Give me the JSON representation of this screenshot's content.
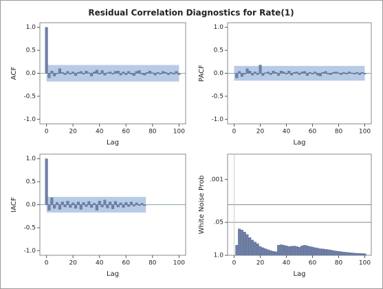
{
  "title": "Residual Correlation Diagnostics for Rate(1)",
  "chart_data": [
    {
      "type": "bar",
      "xlabel": "Lag",
      "ylabel": "ACF",
      "color": "#6f80a6",
      "band_color": "#b7cbe6",
      "xlim": [
        -5,
        105
      ],
      "xticks": [
        0,
        20,
        40,
        60,
        80,
        100
      ],
      "ylim": [
        -1.1,
        1.1
      ],
      "yticks": [
        {
          "value": -1,
          "label": "-1.0"
        },
        -0.5,
        {
          "value": 0,
          "label": "0.0"
        },
        0.5,
        {
          "value": 1,
          "label": "1.0"
        }
      ],
      "band": [
        -0.18,
        0.18
      ],
      "band_x": [
        0,
        100
      ],
      "x": [
        0,
        2,
        4,
        6,
        8,
        10,
        12,
        14,
        16,
        18,
        20,
        22,
        24,
        26,
        28,
        30,
        32,
        34,
        36,
        38,
        40,
        42,
        44,
        46,
        48,
        50,
        52,
        54,
        56,
        58,
        60,
        62,
        64,
        66,
        68,
        70,
        72,
        74,
        76,
        78,
        80,
        82,
        84,
        86,
        88,
        90,
        92,
        94,
        96,
        98,
        100
      ],
      "values": [
        1.0,
        -0.1,
        0.05,
        -0.06,
        0.0,
        0.1,
        0.02,
        -0.03,
        0.04,
        -0.02,
        0.03,
        -0.05,
        0.02,
        0.04,
        -0.02,
        0.05,
        0.01,
        -0.06,
        0.03,
        0.07,
        -0.02,
        0.06,
        -0.04,
        0.01,
        0.03,
        -0.02,
        0.04,
        0.05,
        -0.04,
        0.03,
        -0.03,
        0.04,
        -0.02,
        -0.05,
        0.04,
        0.06,
        -0.02,
        -0.04,
        0.02,
        0.05,
        0.01,
        -0.04,
        0.02,
        -0.02,
        0.04,
        0.02,
        -0.03,
        0.02,
        -0.02,
        0.04,
        -0.03
      ]
    },
    {
      "type": "bar",
      "xlabel": "Lag",
      "ylabel": "PACF",
      "color": "#6f80a6",
      "band_color": "#b7cbe6",
      "xlim": [
        -5,
        105
      ],
      "xticks": [
        0,
        20,
        40,
        60,
        80,
        100
      ],
      "ylim": [
        -1.1,
        1.1
      ],
      "yticks": [
        {
          "value": -1,
          "label": "-1.0"
        },
        -0.5,
        {
          "value": 0,
          "label": "0.0"
        },
        0.5,
        {
          "value": 1,
          "label": "1.0"
        }
      ],
      "band": [
        -0.16,
        0.16
      ],
      "band_x": [
        0,
        100
      ],
      "x": [
        2,
        4,
        6,
        8,
        10,
        12,
        14,
        16,
        18,
        20,
        22,
        24,
        26,
        28,
        30,
        32,
        34,
        36,
        38,
        40,
        42,
        44,
        46,
        48,
        50,
        52,
        54,
        56,
        58,
        60,
        62,
        64,
        66,
        68,
        70,
        72,
        74,
        76,
        78,
        80,
        82,
        84,
        86,
        88,
        90,
        92,
        94,
        96,
        98,
        100
      ],
      "values": [
        -0.1,
        0.04,
        -0.07,
        -0.02,
        0.1,
        0.05,
        -0.04,
        0.03,
        -0.03,
        0.18,
        -0.05,
        0.01,
        0.03,
        -0.03,
        0.05,
        0.02,
        -0.05,
        0.05,
        0.03,
        -0.02,
        0.05,
        -0.04,
        0.02,
        0.03,
        -0.03,
        0.03,
        0.04,
        -0.05,
        0.02,
        -0.02,
        0.03,
        -0.04,
        -0.06,
        0.02,
        0.04,
        -0.02,
        -0.03,
        0.02,
        0.03,
        0.01,
        -0.03,
        0.02,
        -0.02,
        0.03,
        0.01,
        -0.02,
        0.02,
        -0.03,
        0.02,
        -0.02
      ]
    },
    {
      "type": "bar",
      "xlabel": "Lag",
      "ylabel": "IACF",
      "color": "#6f80a6",
      "band_color": "#b7cbe6",
      "xlim": [
        -5,
        105
      ],
      "xticks": [
        0,
        20,
        40,
        60,
        80,
        100
      ],
      "ylim": [
        -1.1,
        1.1
      ],
      "yticks": [
        {
          "value": -1,
          "label": "-1.0"
        },
        -0.5,
        {
          "value": 0,
          "label": "0.0"
        },
        0.5,
        {
          "value": 1,
          "label": "1.0"
        }
      ],
      "band": [
        -0.17,
        0.17
      ],
      "band_x": [
        0,
        75
      ],
      "x": [
        0,
        2,
        4,
        6,
        8,
        10,
        12,
        14,
        16,
        18,
        20,
        22,
        24,
        26,
        28,
        30,
        32,
        34,
        36,
        38,
        40,
        42,
        44,
        46,
        48,
        50,
        52,
        54,
        56,
        58,
        60,
        62,
        64,
        66,
        68,
        70,
        72,
        74
      ],
      "values": [
        1.0,
        -0.12,
        0.15,
        -0.08,
        0.05,
        -0.1,
        0.06,
        -0.05,
        0.08,
        -0.06,
        0.04,
        -0.08,
        0.06,
        -0.1,
        0.05,
        -0.04,
        0.07,
        -0.06,
        0.03,
        -0.12,
        0.08,
        -0.05,
        0.1,
        -0.07,
        0.06,
        -0.09,
        0.07,
        -0.05,
        0.04,
        -0.06,
        0.05,
        -0.04,
        0.06,
        -0.03,
        0.04,
        -0.02,
        0.03,
        -0.02
      ]
    },
    {
      "type": "bar",
      "xlabel": "Lag",
      "ylabel": "White Noise Prob",
      "color": "#6f80a6",
      "log_scale": true,
      "xlim": [
        -5,
        105
      ],
      "xticks": [
        0,
        20,
        40,
        60,
        80,
        100
      ],
      "ylim": [
        1,
        0.0001
      ],
      "yticks": [
        {
          "value": 0.001,
          "label": ".001"
        },
        {
          "value": 0.05,
          "label": ".05"
        },
        {
          "value": 1,
          "label": "1.0"
        }
      ],
      "reference_lines": [
        0.01,
        0.05
      ],
      "x_reference": 0,
      "x": [
        2,
        4,
        6,
        8,
        10,
        12,
        14,
        16,
        18,
        20,
        22,
        24,
        26,
        28,
        30,
        32,
        34,
        36,
        38,
        40,
        42,
        44,
        46,
        48,
        50,
        52,
        54,
        56,
        58,
        60,
        62,
        64,
        66,
        68,
        70,
        72,
        74,
        76,
        78,
        80,
        82,
        84,
        86,
        88,
        90,
        92,
        94,
        96,
        98,
        100
      ],
      "values": [
        0.4,
        0.09,
        0.1,
        0.12,
        0.15,
        0.2,
        0.25,
        0.3,
        0.35,
        0.45,
        0.5,
        0.55,
        0.6,
        0.65,
        0.7,
        0.72,
        0.4,
        0.38,
        0.4,
        0.42,
        0.45,
        0.44,
        0.43,
        0.45,
        0.48,
        0.42,
        0.4,
        0.42,
        0.45,
        0.47,
        0.5,
        0.52,
        0.55,
        0.56,
        0.58,
        0.6,
        0.62,
        0.65,
        0.68,
        0.7,
        0.72,
        0.74,
        0.76,
        0.78,
        0.8,
        0.82,
        0.83,
        0.84,
        0.85,
        0.86
      ]
    }
  ]
}
